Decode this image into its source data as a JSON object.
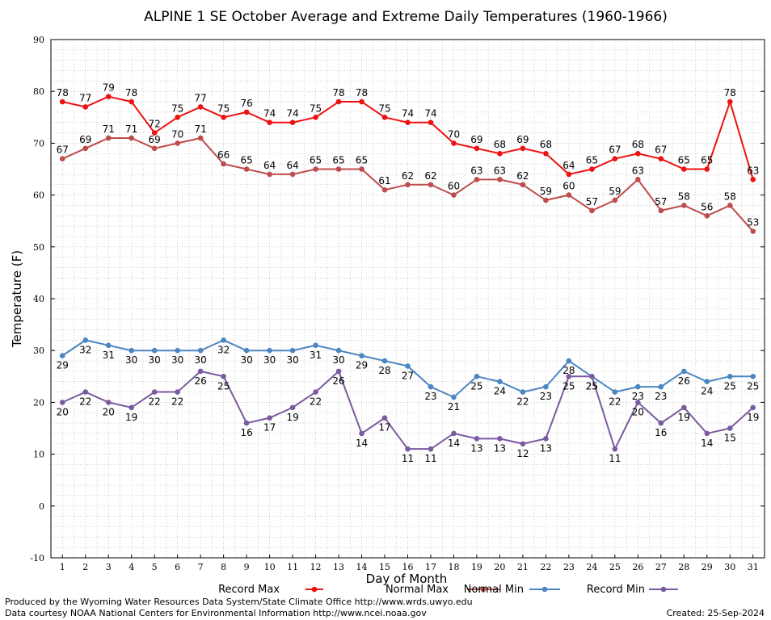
{
  "chart_data": {
    "type": "line",
    "title": "ALPINE 1 SE October Average and Extreme Daily Temperatures (1960-1966)",
    "xlabel": "Day of Month",
    "ylabel": "Temperature (F)",
    "ylim": [
      -10,
      90
    ],
    "yticks": [
      -10,
      0,
      10,
      20,
      30,
      40,
      50,
      60,
      70,
      80,
      90
    ],
    "xlim": [
      0.5,
      31.5
    ],
    "x": [
      1,
      2,
      3,
      4,
      5,
      6,
      7,
      8,
      9,
      10,
      11,
      12,
      13,
      14,
      15,
      16,
      17,
      18,
      19,
      20,
      21,
      22,
      23,
      24,
      25,
      26,
      27,
      28,
      29,
      30,
      31
    ],
    "grid": true,
    "legend_position": "bottom",
    "series": [
      {
        "name": "Record Max",
        "color": "#ee1111",
        "label_pos": "above",
        "values": [
          78,
          77,
          79,
          78,
          72,
          75,
          77,
          75,
          76,
          74,
          74,
          75,
          78,
          78,
          75,
          74,
          74,
          70,
          69,
          68,
          69,
          68,
          64,
          65,
          67,
          68,
          67,
          65,
          65,
          78,
          63
        ]
      },
      {
        "name": "Normal Max",
        "color": "#bf4c4c",
        "label_pos": "above",
        "values": [
          67,
          69,
          71,
          71,
          69,
          70,
          71,
          66,
          65,
          64,
          64,
          65,
          65,
          65,
          61,
          62,
          62,
          60,
          63,
          63,
          62,
          59,
          60,
          57,
          59,
          63,
          57,
          58,
          56,
          58,
          53
        ]
      },
      {
        "name": "Normal Min",
        "color": "#4a86c0",
        "label_pos": "below",
        "values": [
          29,
          32,
          31,
          30,
          30,
          30,
          30,
          32,
          30,
          30,
          30,
          31,
          30,
          29,
          28,
          27,
          23,
          21,
          25,
          24,
          22,
          23,
          28,
          25,
          22,
          23,
          23,
          26,
          24,
          25,
          25
        ]
      },
      {
        "name": "Record Min",
        "color": "#7b5aa0",
        "label_pos": "below",
        "values": [
          20,
          22,
          20,
          19,
          22,
          22,
          26,
          25,
          16,
          17,
          19,
          22,
          26,
          14,
          17,
          11,
          11,
          14,
          13,
          13,
          12,
          13,
          25,
          25,
          11,
          20,
          16,
          19,
          14,
          15,
          19
        ]
      }
    ]
  },
  "footer": {
    "produced_by": "Produced by the Wyoming Water Resources Data System/State Climate Office http://www.wrds.uwyo.edu",
    "courtesy": "Data courtesy NOAA National Centers for Environmental Information http://www.ncei.noaa.gov",
    "created": "Created:  25-Sep-2024"
  }
}
